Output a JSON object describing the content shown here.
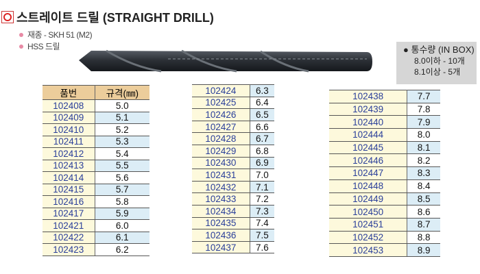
{
  "title": "스트레이트 드릴 (STRAIGHT DRILL)",
  "bullets": [
    "재종 - SKH 51 (M2)",
    "HSS 드릴"
  ],
  "box": {
    "heading": "통수량 (IN BOX)",
    "lines": [
      "8.0이하 - 10개",
      "8.1이상 - 5개"
    ]
  },
  "table_header": {
    "code": "품번",
    "size": "규격(㎜)"
  },
  "tables": [
    [
      [
        "102408",
        "5.0"
      ],
      [
        "102409",
        "5.1"
      ],
      [
        "102410",
        "5.2"
      ],
      [
        "102411",
        "5.3"
      ],
      [
        "102412",
        "5.4"
      ],
      [
        "102413",
        "5.5"
      ],
      [
        "102414",
        "5.6"
      ],
      [
        "102415",
        "5.7"
      ],
      [
        "102416",
        "5.8"
      ],
      [
        "102417",
        "5.9"
      ],
      [
        "102421",
        "6.0"
      ],
      [
        "102422",
        "6.1"
      ],
      [
        "102423",
        "6.2"
      ]
    ],
    [
      [
        "102424",
        "6.3"
      ],
      [
        "102425",
        "6.4"
      ],
      [
        "102426",
        "6.5"
      ],
      [
        "102427",
        "6.6"
      ],
      [
        "102428",
        "6.7"
      ],
      [
        "102429",
        "6.8"
      ],
      [
        "102430",
        "6.9"
      ],
      [
        "102431",
        "7.0"
      ],
      [
        "102432",
        "7.1"
      ],
      [
        "102433",
        "7.2"
      ],
      [
        "102434",
        "7.3"
      ],
      [
        "102435",
        "7.4"
      ],
      [
        "102436",
        "7.5"
      ],
      [
        "102437",
        "7.6"
      ]
    ],
    [
      [
        "102438",
        "7.7"
      ],
      [
        "102439",
        "7.8"
      ],
      [
        "102440",
        "7.9"
      ],
      [
        "102444",
        "8.0"
      ],
      [
        "102445",
        "8.1"
      ],
      [
        "102446",
        "8.2"
      ],
      [
        "102447",
        "8.3"
      ],
      [
        "102448",
        "8.4"
      ],
      [
        "102449",
        "8.5"
      ],
      [
        "102450",
        "8.6"
      ],
      [
        "102451",
        "8.7"
      ],
      [
        "102452",
        "8.8"
      ],
      [
        "102453",
        "8.9"
      ]
    ]
  ]
}
